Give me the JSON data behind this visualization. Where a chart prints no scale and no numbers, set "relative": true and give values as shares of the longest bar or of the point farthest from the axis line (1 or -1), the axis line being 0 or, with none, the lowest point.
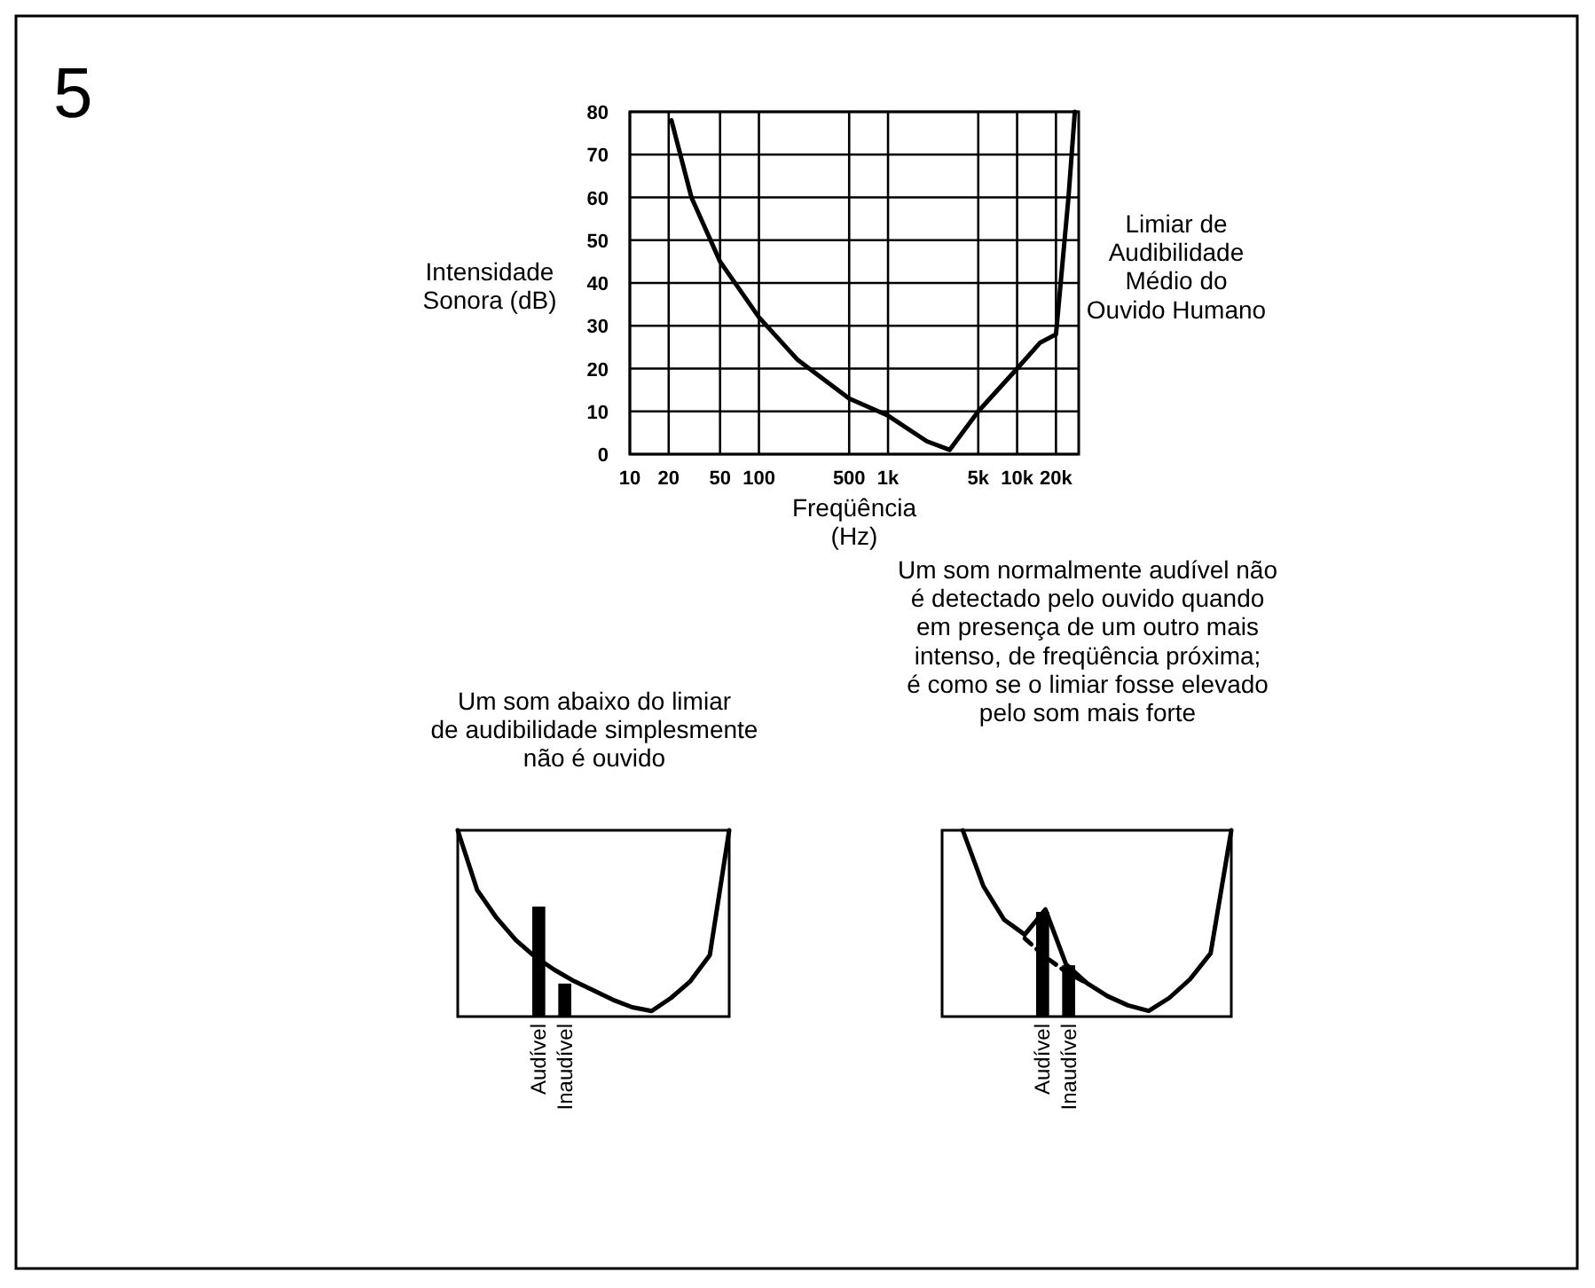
{
  "chart_data": [
    {
      "type": "line",
      "title": "Limiar de\nAudibilidade\nMédio do\nOuvido Humano",
      "xlabel": "Freqüência\n(Hz)",
      "ylabel": "Intensidade\nSonora (dB)",
      "annotations": [
        "5"
      ],
      "log": "x",
      "grid": true,
      "color": "#000000",
      "xlim": [
        10,
        30000
      ],
      "ylim": [
        0,
        80
      ],
      "xticks": [
        10,
        20,
        50,
        100,
        500,
        {
          "value": 1000,
          "label": "1k"
        },
        {
          "value": 5000,
          "label": "5k"
        },
        {
          "value": 10000,
          "label": "10k"
        },
        {
          "value": 20000,
          "label": "20k"
        }
      ],
      "yticks": [
        0,
        10,
        20,
        30,
        40,
        50,
        60,
        70,
        80
      ],
      "x": [
        21,
        30,
        50,
        100,
        200,
        500,
        1000,
        2000,
        3000,
        5000,
        10000,
        15000,
        20000,
        25000,
        28000
      ],
      "values": [
        78,
        60,
        45,
        32,
        22,
        13,
        9,
        3,
        1,
        10,
        20,
        26,
        28,
        60,
        80
      ]
    },
    {
      "type": "line",
      "title": "Um som abaixo do limiar\nde audibilidade simplesmente\nnão é ouvido",
      "relative": true,
      "color": "#000000",
      "categories": [
        null,
        null,
        null,
        null,
        null,
        null,
        null,
        null,
        null,
        null,
        null,
        null,
        null,
        null,
        null
      ],
      "values": [
        1.0,
        0.68,
        0.53,
        0.41,
        0.32,
        0.25,
        0.19,
        0.14,
        0.09,
        0.05,
        0.03,
        0.1,
        0.19,
        0.33,
        1.0
      ]
    },
    {
      "type": "bar",
      "relative": true,
      "color": "#000000",
      "categories": [
        "Audível",
        "Inaudível"
      ],
      "values": [
        1,
        0.3
      ]
    },
    {
      "type": "line",
      "title": "Um som normalmente audível não\né detectado pelo ouvido quando\nem presença de um outro mais\nintenso, de freqüência próxima;\né como se o limiar fosse elevado\npelo som mais forte",
      "relative": true,
      "categories": [
        null,
        null,
        null,
        null,
        null,
        null,
        null,
        null,
        null,
        null,
        null,
        null,
        null,
        null,
        null
      ],
      "series": [
        {
          "color": "#000000",
          "values": [
            null,
            1.0,
            0.7,
            0.52,
            0.44,
            0.575,
            0.28,
            0.18,
            0.11,
            0.06,
            0.03,
            0.1,
            0.2,
            0.34,
            1.0
          ]
        },
        {
          "color": "#000000",
          "line_style": "dashed",
          "values": [
            null,
            null,
            null,
            null,
            0.42,
            0.32,
            0.24,
            0.18,
            null,
            null,
            null,
            null,
            null,
            null,
            null
          ]
        }
      ]
    },
    {
      "type": "bar",
      "relative": true,
      "color": "#000000",
      "categories": [
        "Audível",
        "Inaudível"
      ],
      "values": [
        1,
        0.49
      ]
    }
  ]
}
